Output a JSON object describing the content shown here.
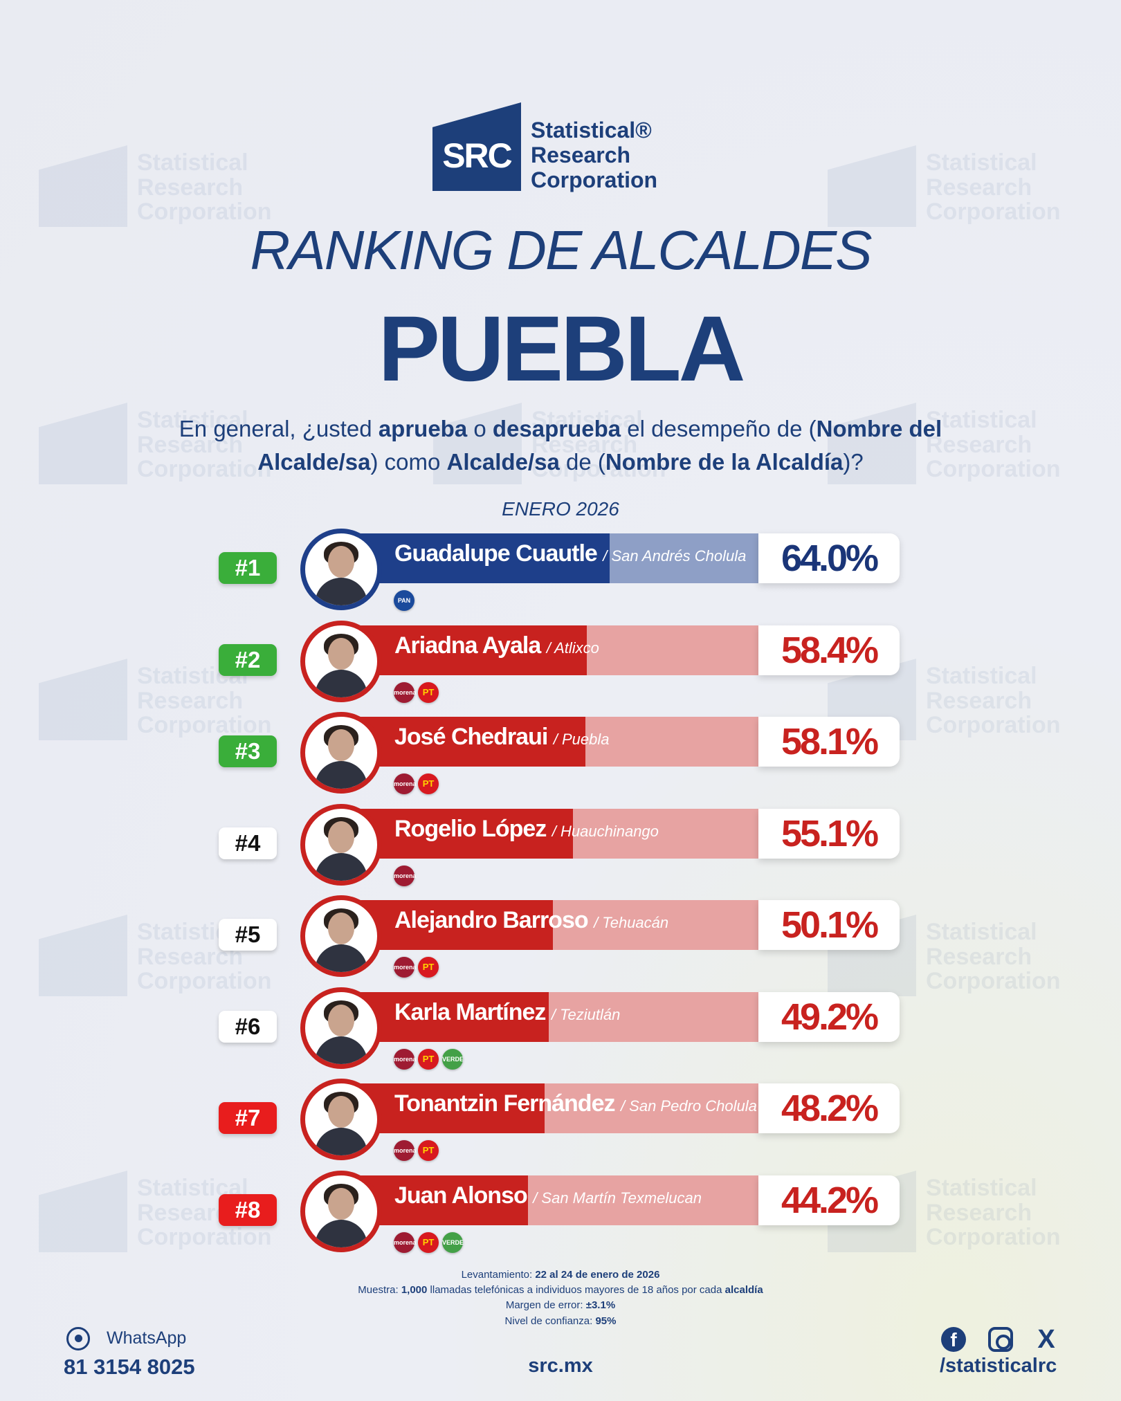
{
  "brand": {
    "src": "SRC",
    "name": "Statistical®\nResearch\nCorporation",
    "watermark_name": "Statistical\nResearch\nCorporation"
  },
  "title_line1": "RANKING DE ALCALDES",
  "title_line2": "PUEBLA",
  "question": {
    "p1": "En general, ¿usted ",
    "b1": "aprueba",
    "p2": " o ",
    "b2": "desaprueba",
    "p3": " el desempeño de (",
    "b3": "Nombre del Alcalde/sa",
    "p4": ") como ",
    "b4": "Alcalde/sa",
    "p5": " de (",
    "b5": "Nombre de la Alcaldía",
    "p6": ")?"
  },
  "period": "ENERO 2026",
  "chart_data": {
    "type": "bar",
    "orientation": "horizontal",
    "xlim": [
      0,
      100
    ],
    "unit": "%",
    "rows": [
      {
        "rank": "#1",
        "name": "Guadalupe Cuautle",
        "place": "/ San Andrés Cholula",
        "value": 64.0,
        "label": "64.0%",
        "parties": [
          "PAN"
        ],
        "theme": "blue",
        "rank_color": "green"
      },
      {
        "rank": "#2",
        "name": "Ariadna Ayala",
        "place": "/ Atlixco",
        "value": 58.4,
        "label": "58.4%",
        "parties": [
          "morena",
          "PT"
        ],
        "theme": "red",
        "rank_color": "green"
      },
      {
        "rank": "#3",
        "name": "José Chedraui",
        "place": "/ Puebla",
        "value": 58.1,
        "label": "58.1%",
        "parties": [
          "morena",
          "PT"
        ],
        "theme": "red",
        "rank_color": "green"
      },
      {
        "rank": "#4",
        "name": "Rogelio López",
        "place": "/ Huauchinango",
        "value": 55.1,
        "label": "55.1%",
        "parties": [
          "morena"
        ],
        "theme": "red",
        "rank_color": "white"
      },
      {
        "rank": "#5",
        "name": "Alejandro Barroso",
        "place": "/ Tehuacán",
        "value": 50.1,
        "label": "50.1%",
        "parties": [
          "morena",
          "PT"
        ],
        "theme": "red",
        "rank_color": "white"
      },
      {
        "rank": "#6",
        "name": "Karla Martínez",
        "place": "/ Teziutlán",
        "value": 49.2,
        "label": "49.2%",
        "parties": [
          "morena",
          "PT",
          "VERDE"
        ],
        "theme": "red",
        "rank_color": "white"
      },
      {
        "rank": "#7",
        "name": "Tonantzin Fernández",
        "place": "/ San Pedro Cholula",
        "value": 48.2,
        "label": "48.2%",
        "parties": [
          "morena",
          "PT"
        ],
        "theme": "red",
        "rank_color": "red"
      },
      {
        "rank": "#8",
        "name": "Juan Alonso",
        "place": "/ San Martín Texmelucan",
        "value": 44.2,
        "label": "44.2%",
        "parties": [
          "morena",
          "PT",
          "VERDE"
        ],
        "theme": "red",
        "rank_color": "red"
      }
    ]
  },
  "colors": {
    "navy": "#1d3f7a",
    "blue_fill": "#1e3f8a",
    "blue_track": "#8e9fc6",
    "blue_text": "#1a3578",
    "red_fill": "#c8221f",
    "red_track": "#e7a3a2",
    "red_text": "#c8221f",
    "rank_green": "#3aae3a",
    "rank_red": "#e81d1d",
    "rank_white": "#ffffff",
    "party_morena": "#9e1b32",
    "party_pt": "#d8191f",
    "party_verde": "#43a047",
    "party_pan": "#1a4a9c"
  },
  "notes": {
    "l1_label": "Levantamiento: ",
    "l1_value": "22 al 24 de enero de 2026",
    "l2_label": "Muestra: ",
    "l2_value": "1,000",
    "l2_rest": " llamadas telefónicas a individuos mayores de 18 años por cada ",
    "l2_end": "alcaldía",
    "l3_label": "Margen de error: ",
    "l3_value": "±3.1%",
    "l4_label": "Nivel de confianza: ",
    "l4_value": "95%"
  },
  "footer": {
    "whatsapp_label": "WhatsApp",
    "phone": "81 3154 8025",
    "site": "src.mx",
    "handle": "/statisticalrc",
    "fb_icon": "facebook-icon",
    "ig_icon": "instagram-icon",
    "x_icon": "x-icon",
    "wa_icon": "whatsapp-icon"
  }
}
